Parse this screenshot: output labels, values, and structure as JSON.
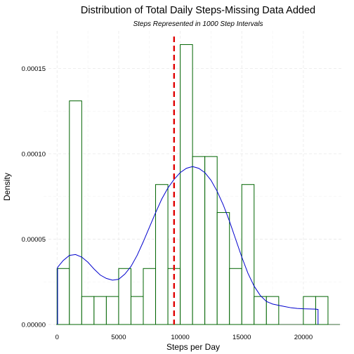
{
  "chart_data": {
    "type": "bar",
    "title": "Distribution of Total Daily Steps-Missing Data Added",
    "subtitle": "Steps Represented in 1000 Step Intervals",
    "xlabel": "Steps per Day",
    "ylabel": "Density",
    "xlim": [
      -1100,
      23200
    ],
    "ylim": [
      0,
      0.000172
    ],
    "x_ticks": [
      0,
      5000,
      10000,
      15000,
      20000
    ],
    "x_tick_labels": [
      "0",
      "5000",
      "10000",
      "15000",
      "20000"
    ],
    "y_ticks": [
      0,
      5e-05,
      0.0001,
      0.00015
    ],
    "y_tick_labels": [
      "0.00000",
      "0.00005",
      "0.00010",
      "0.00015"
    ],
    "grid": true,
    "bin_width": 1000,
    "histogram": [
      {
        "x0": 0,
        "x1": 1000,
        "density": 3.28e-05
      },
      {
        "x0": 1000,
        "x1": 2000,
        "density": 0.000131
      },
      {
        "x0": 2000,
        "x1": 3000,
        "density": 1.64e-05
      },
      {
        "x0": 3000,
        "x1": 4000,
        "density": 1.64e-05
      },
      {
        "x0": 4000,
        "x1": 5000,
        "density": 1.64e-05
      },
      {
        "x0": 5000,
        "x1": 6000,
        "density": 3.28e-05
      },
      {
        "x0": 6000,
        "x1": 7000,
        "density": 1.64e-05
      },
      {
        "x0": 7000,
        "x1": 8000,
        "density": 3.28e-05
      },
      {
        "x0": 8000,
        "x1": 9000,
        "density": 8.2e-05
      },
      {
        "x0": 9000,
        "x1": 10000,
        "density": 3.28e-05
      },
      {
        "x0": 10000,
        "x1": 11000,
        "density": 0.000164
      },
      {
        "x0": 11000,
        "x1": 12000,
        "density": 9.84e-05
      },
      {
        "x0": 12000,
        "x1": 13000,
        "density": 9.84e-05
      },
      {
        "x0": 13000,
        "x1": 14000,
        "density": 6.56e-05
      },
      {
        "x0": 14000,
        "x1": 15000,
        "density": 3.28e-05
      },
      {
        "x0": 15000,
        "x1": 16000,
        "density": 8.2e-05
      },
      {
        "x0": 16000,
        "x1": 17000,
        "density": 1.64e-05
      },
      {
        "x0": 17000,
        "x1": 18000,
        "density": 1.64e-05
      },
      {
        "x0": 18000,
        "x1": 19000,
        "density": 0
      },
      {
        "x0": 19000,
        "x1": 20000,
        "density": 0
      },
      {
        "x0": 20000,
        "x1": 21000,
        "density": 1.64e-05
      },
      {
        "x0": 21000,
        "x1": 22000,
        "density": 1.64e-05
      }
    ],
    "density_curve": {
      "x": [
        41,
        500,
        1000,
        1500,
        2000,
        2500,
        3000,
        3500,
        4000,
        4500,
        5000,
        5500,
        6000,
        6500,
        7000,
        7500,
        8000,
        8500,
        9000,
        9500,
        10000,
        10500,
        11000,
        11500,
        12000,
        12500,
        13000,
        13500,
        14000,
        14500,
        15000,
        15500,
        16000,
        16500,
        17000,
        17500,
        18000,
        18500,
        19000,
        19500,
        20000,
        20500,
        21000,
        21194
      ],
      "y": [
        3.35e-05,
        3.75e-05,
        4.05e-05,
        4.1e-05,
        3.95e-05,
        3.65e-05,
        3.25e-05,
        2.9e-05,
        2.7e-05,
        2.6e-05,
        2.65e-05,
        2.95e-05,
        3.4e-05,
        4.05e-05,
        4.85e-05,
        5.7e-05,
        6.55e-05,
        7.35e-05,
        8e-05,
        8.5e-05,
        8.9e-05,
        9.15e-05,
        9.25e-05,
        9.15e-05,
        8.9e-05,
        8.45e-05,
        7.8e-05,
        7e-05,
        6.05e-05,
        5e-05,
        3.95e-05,
        3e-05,
        2.25e-05,
        1.7e-05,
        1.35e-05,
        1.2e-05,
        1.12e-05,
        1.05e-05,
        9.8e-06,
        9.4e-06,
        9.2e-06,
        9.1e-06,
        9e-06,
        8.8e-06
      ]
    },
    "mean_line_x": 9500,
    "colors": {
      "bars": "#006400",
      "density": "#0000cd",
      "mean": "#e00000"
    }
  }
}
